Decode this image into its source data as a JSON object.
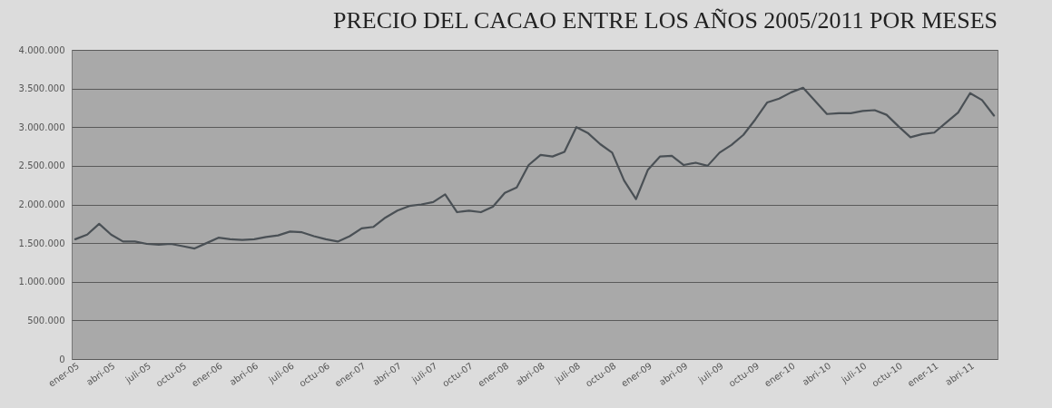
{
  "chart_data": {
    "type": "line",
    "title": "PRECIO DEL CACAO ENTRE LOS AÑOS 2005/2011 POR MESES",
    "categories": [
      "ener-05",
      null,
      null,
      "abri-05",
      null,
      null,
      "juli-05",
      null,
      null,
      "octu-05",
      null,
      null,
      "ener-06",
      null,
      null,
      "abri-06",
      null,
      null,
      "juli-06",
      null,
      null,
      "octu-06",
      null,
      null,
      "ener-07",
      null,
      null,
      "abri-07",
      null,
      null,
      "juli-07",
      null,
      null,
      "octu-07",
      null,
      null,
      "ener-08",
      null,
      null,
      "abri-08",
      null,
      null,
      "juli-08",
      null,
      null,
      "octu-08",
      null,
      null,
      "ener-09",
      null,
      null,
      "abri-09",
      null,
      null,
      "juli-09",
      null,
      null,
      "octu-09",
      null,
      null,
      "ener-10",
      null,
      null,
      "abri-10",
      null,
      null,
      "juli-10",
      null,
      null,
      "octu-10",
      null,
      null,
      "ener-11",
      null,
      null,
      "abri-11",
      null,
      null
    ],
    "series": [
      {
        "color": "#4a5055",
        "values": [
          1550000,
          1610000,
          1750000,
          1610000,
          1520000,
          1520000,
          1490000,
          1480000,
          1490000,
          1460000,
          1430000,
          1500000,
          1570000,
          1550000,
          1540000,
          1550000,
          1580000,
          1600000,
          1650000,
          1640000,
          1590000,
          1550000,
          1520000,
          1590000,
          1690000,
          1710000,
          1830000,
          1920000,
          1980000,
          2000000,
          2030000,
          2130000,
          1900000,
          1920000,
          1900000,
          1970000,
          2150000,
          2220000,
          2510000,
          2640000,
          2620000,
          2680000,
          3000000,
          2920000,
          2780000,
          2670000,
          2310000,
          2070000,
          2450000,
          2620000,
          2630000,
          2510000,
          2540000,
          2500000,
          2670000,
          2770000,
          2900000,
          3100000,
          3320000,
          3370000,
          3450000,
          3510000,
          3340000,
          3170000,
          3180000,
          3180000,
          3210000,
          3220000,
          3160000,
          3010000,
          2870000,
          2910000,
          2930000,
          3060000,
          3190000,
          3440000,
          3350000,
          3150000
        ]
      }
    ],
    "ylim": [
      0,
      4000000
    ],
    "yticks": [
      0,
      {
        "value": 500000,
        "label": "500.000"
      },
      {
        "value": 1000000,
        "label": "1.000.000"
      },
      {
        "value": 1500000,
        "label": "1.500.000"
      },
      {
        "value": 2000000,
        "label": "2.000.000"
      },
      {
        "value": 2500000,
        "label": "2.500.000"
      },
      {
        "value": 3000000,
        "label": "3.000.000"
      },
      {
        "value": 3500000,
        "label": "3.500.000"
      },
      {
        "value": 4000000,
        "label": "4.000.000"
      }
    ],
    "grid": "y",
    "marker": "none",
    "line_style": "solid"
  }
}
